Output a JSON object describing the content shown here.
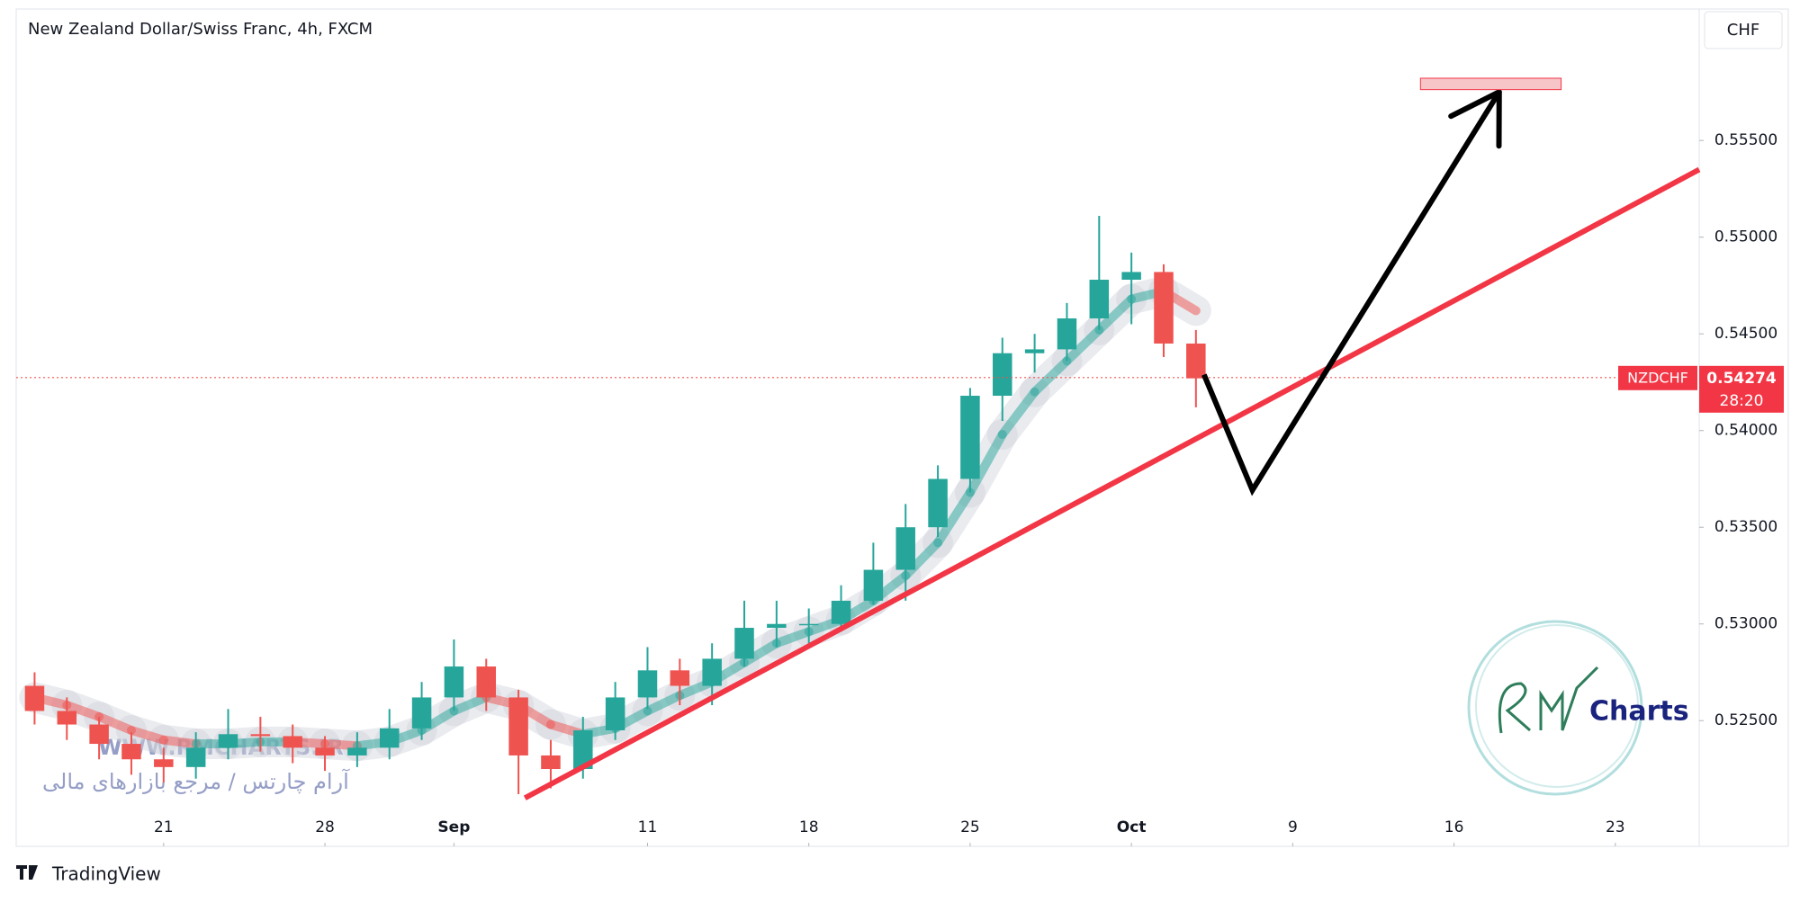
{
  "chart_data": {
    "type": "candlestick",
    "title": "New Zealand Dollar/Swiss Franc, 4h, FXCM",
    "currency": "CHF",
    "symbol": "NZDCHF",
    "last_price": 0.54274,
    "countdown": "28:20",
    "up_color": "#26a69a",
    "down_color": "#ef5350",
    "x": [
      -4,
      -3,
      -2,
      -1,
      0,
      1,
      2,
      3,
      4,
      5,
      6,
      7,
      8,
      9,
      10,
      11,
      12,
      13,
      14,
      15,
      16,
      17,
      18,
      19,
      20,
      21,
      22,
      23,
      24,
      25,
      26,
      27,
      28,
      29,
      30,
      31,
      32
    ],
    "open": [
      0.5268,
      0.5255,
      0.5248,
      0.5238,
      0.523,
      0.5226,
      0.5236,
      0.5243,
      0.5242,
      0.5236,
      0.5232,
      0.5236,
      0.5246,
      0.5262,
      0.5278,
      0.5262,
      0.5232,
      0.5225,
      0.5245,
      0.5262,
      0.5276,
      0.5268,
      0.5282,
      0.5298,
      0.53,
      0.53,
      0.5312,
      0.5328,
      0.535,
      0.5375,
      0.5418,
      0.544,
      0.5442,
      0.5458,
      0.5478,
      0.5482,
      0.5445
    ],
    "high": [
      0.5275,
      0.5262,
      0.5252,
      0.5244,
      0.5236,
      0.5244,
      0.5256,
      0.5252,
      0.5248,
      0.5242,
      0.5244,
      0.5256,
      0.527,
      0.5292,
      0.5282,
      0.5266,
      0.524,
      0.5252,
      0.527,
      0.5288,
      0.5282,
      0.529,
      0.5312,
      0.5312,
      0.5308,
      0.532,
      0.5342,
      0.5362,
      0.5382,
      0.5422,
      0.5448,
      0.545,
      0.5466,
      0.5511,
      0.5492,
      0.5486,
      0.5452
    ],
    "low": [
      0.5248,
      0.524,
      0.523,
      0.5222,
      0.5218,
      0.522,
      0.523,
      0.5234,
      0.5228,
      0.5224,
      0.5226,
      0.523,
      0.524,
      0.5255,
      0.5255,
      0.5212,
      0.5215,
      0.522,
      0.524,
      0.5256,
      0.5258,
      0.5258,
      0.5278,
      0.5288,
      0.529,
      0.5296,
      0.531,
      0.5312,
      0.5345,
      0.5368,
      0.5405,
      0.543,
      0.5436,
      0.5452,
      0.5455,
      0.5438,
      0.5412
    ],
    "close": [
      0.5255,
      0.5248,
      0.5238,
      0.523,
      0.5226,
      0.5236,
      0.5243,
      0.5242,
      0.5236,
      0.5232,
      0.5236,
      0.5246,
      0.5262,
      0.5278,
      0.5262,
      0.5232,
      0.5225,
      0.5245,
      0.5262,
      0.5276,
      0.5268,
      0.5282,
      0.5298,
      0.53,
      0.53,
      0.5312,
      0.5328,
      0.535,
      0.5375,
      0.5418,
      0.544,
      0.5442,
      0.5458,
      0.5478,
      0.5482,
      0.5445,
      0.5427
    ],
    "ma": [
      0.5262,
      0.5258,
      0.5252,
      0.5245,
      0.524,
      0.5238,
      0.5238,
      0.5239,
      0.5239,
      0.5238,
      0.5237,
      0.5239,
      0.5245,
      0.5255,
      0.5262,
      0.5258,
      0.5248,
      0.5243,
      0.5246,
      0.5255,
      0.5263,
      0.527,
      0.528,
      0.529,
      0.5296,
      0.5302,
      0.5312,
      0.5325,
      0.5342,
      0.5368,
      0.5398,
      0.542,
      0.5436,
      0.5452,
      0.5468,
      0.5472,
      0.5462
    ],
    "xlim": [
      -4.57,
      47.6
    ],
    "xticks": [
      {
        "value": 0,
        "label": "21"
      },
      {
        "value": 5,
        "label": "28"
      },
      {
        "value": 9,
        "label": "Sep"
      },
      {
        "value": 15,
        "label": "11"
      },
      {
        "value": 20,
        "label": "18"
      },
      {
        "value": 25,
        "label": "25"
      },
      {
        "value": 30,
        "label": "Oct"
      },
      {
        "value": 35,
        "label": "9"
      },
      {
        "value": 40,
        "label": "16"
      },
      {
        "value": 45,
        "label": "23"
      }
    ],
    "ylim": [
      0.5185,
      0.5618
    ],
    "yticks": [
      {
        "value": 0.525,
        "label": "0.52500"
      },
      {
        "value": 0.53,
        "label": "0.53000"
      },
      {
        "value": 0.535,
        "label": "0.53500"
      },
      {
        "value": 0.54,
        "label": "0.54000"
      },
      {
        "value": 0.545,
        "label": "0.54500"
      },
      {
        "value": 0.55,
        "label": "0.55000"
      },
      {
        "value": 0.555,
        "label": "0.55500"
      }
    ],
    "trendline": {
      "x": [
        11.2,
        47.6
      ],
      "y": [
        0.521,
        0.5535
      ],
      "color": "#f23645"
    },
    "projection": {
      "x": [
        32.25,
        33.75,
        41.4
      ],
      "y": [
        0.54289,
        0.53692,
        0.55751
      ],
      "color": "#000000"
    },
    "target_zone": {
      "x": [
        38.96,
        43.32
      ],
      "y": [
        0.55763,
        0.55822
      ],
      "color": "#f7c5c8"
    }
  },
  "branding": {
    "watermark": "WWW.RMCHARTS.IR",
    "watermark_fa": "آرام چارتس / مرجع بازارهای مالی",
    "logo_text": "Charts",
    "footer": "TradingView"
  }
}
